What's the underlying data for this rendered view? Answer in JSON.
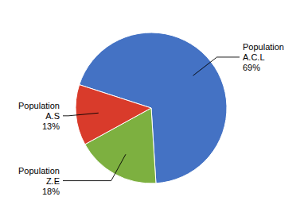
{
  "chart_data": {
    "type": "pie",
    "categories": [
      "Population\nA.C.L",
      "Population\nZ.E",
      "Population\nA.S"
    ],
    "values": [
      69,
      18,
      13
    ],
    "value_labels": [
      "69%",
      "18%",
      "13%"
    ],
    "colors": [
      "#4472C4",
      "#7DB040",
      "#D93B2B"
    ],
    "data_labels": true
  }
}
